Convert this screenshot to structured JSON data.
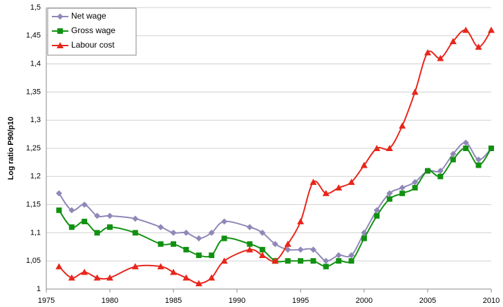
{
  "chart_data": {
    "type": "line",
    "y_label": "Log ratio P90/p10",
    "x": [
      1976,
      1977,
      1978,
      1979,
      1980,
      1982,
      1984,
      1985,
      1986,
      1987,
      1988,
      1989,
      1991,
      1992,
      1993,
      1994,
      1995,
      1996,
      1997,
      1998,
      1999,
      2000,
      2001,
      2002,
      2003,
      2004,
      2005,
      2006,
      2007,
      2008,
      2009,
      2010
    ],
    "series": [
      {
        "name": "Net wage",
        "color": "#8f88b8",
        "marker": "diamond",
        "values": [
          1.17,
          1.14,
          1.15,
          1.13,
          1.13,
          1.125,
          1.11,
          1.1,
          1.1,
          1.09,
          1.1,
          1.12,
          1.11,
          1.1,
          1.08,
          1.07,
          1.07,
          1.07,
          1.05,
          1.06,
          1.06,
          1.1,
          1.14,
          1.17,
          1.18,
          1.19,
          1.21,
          1.21,
          1.24,
          1.26,
          1.23,
          1.25
        ]
      },
      {
        "name": "Gross wage",
        "color": "#119111",
        "marker": "square",
        "values": [
          1.14,
          1.11,
          1.12,
          1.1,
          1.11,
          1.1,
          1.08,
          1.08,
          1.07,
          1.06,
          1.06,
          1.09,
          1.08,
          1.07,
          1.05,
          1.05,
          1.05,
          1.05,
          1.04,
          1.05,
          1.05,
          1.09,
          1.13,
          1.16,
          1.17,
          1.18,
          1.21,
          1.2,
          1.23,
          1.25,
          1.22,
          1.25
        ]
      },
      {
        "name": "Labour cost",
        "color": "#e8261b",
        "marker": "triangle",
        "values": [
          1.04,
          1.02,
          1.03,
          1.02,
          1.02,
          1.04,
          1.04,
          1.03,
          1.02,
          1.01,
          1.02,
          1.05,
          1.07,
          1.06,
          1.05,
          1.08,
          1.12,
          1.19,
          1.17,
          1.18,
          1.19,
          1.22,
          1.25,
          1.25,
          1.29,
          1.35,
          1.42,
          1.41,
          1.44,
          1.46,
          1.43,
          1.46
        ]
      }
    ],
    "xlim": [
      1975,
      2010
    ],
    "xticks": [
      1975,
      1980,
      1985,
      1990,
      1995,
      2000,
      2005,
      2010
    ],
    "ylim": [
      1,
      1.5
    ],
    "yticks": [
      1,
      {
        "value": 1.05,
        "label": "1,05"
      },
      {
        "value": 1.1,
        "label": "1,1"
      },
      {
        "value": 1.15,
        "label": "1,15"
      },
      {
        "value": 1.2,
        "label": "1,2"
      },
      {
        "value": 1.25,
        "label": "1,25"
      },
      {
        "value": 1.3,
        "label": "1,3"
      },
      {
        "value": 1.35,
        "label": "1,35"
      },
      {
        "value": 1.4,
        "label": "1,4"
      },
      {
        "value": 1.45,
        "label": "1,45"
      },
      {
        "value": 1.5,
        "label": "1,5"
      }
    ],
    "grid": true,
    "smooth": true,
    "legend": "top-left"
  }
}
